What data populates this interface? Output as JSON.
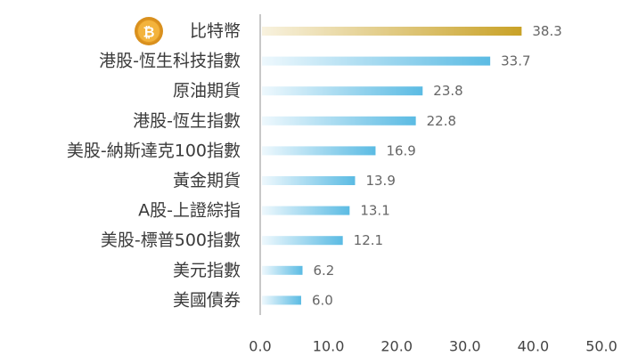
{
  "chart_data": {
    "type": "bar",
    "orientation": "horizontal",
    "title": "",
    "xlabel": "",
    "ylabel": "",
    "categories": [
      "比特幣",
      "港股-恆生科技指數",
      "原油期貨",
      "港股-恆生指數",
      "美股-納斯達克100指數",
      "黃金期貨",
      "A股-上證綜指",
      "美股-標普500指數",
      "美元指數",
      "美國債券"
    ],
    "values": [
      38.3,
      33.7,
      23.8,
      22.8,
      16.9,
      13.9,
      13.1,
      12.1,
      6.2,
      6.0
    ],
    "value_labels": [
      "38.3",
      "33.7",
      "23.8",
      "22.8",
      "16.9",
      "13.9",
      "13.1",
      "12.1",
      "6.2",
      "6.0"
    ],
    "xlim": [
      0,
      50
    ],
    "xticks": [
      0,
      10,
      20,
      30,
      40,
      50
    ],
    "xtick_labels": [
      "0.0",
      "10.0",
      "20.0",
      "30.0",
      "40.0",
      "50.0"
    ],
    "grid": false,
    "legend": "none",
    "highlight_index": 0,
    "highlight_icon": "bitcoin-coin-icon",
    "highlight_icon_text": "₿",
    "colors": {
      "bar": "#5bbbe3",
      "bar_fade": "#eef8fd",
      "highlight_bar": "#c9a227",
      "highlight_bar_fade": "#f8f2df",
      "axis": "#c8c8c8",
      "coin_outer": "#d9901e",
      "coin_inner": "#f3b33c"
    }
  }
}
